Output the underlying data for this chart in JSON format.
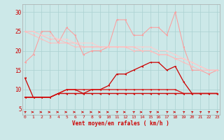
{
  "x": [
    0,
    1,
    2,
    3,
    4,
    5,
    6,
    7,
    8,
    9,
    10,
    11,
    12,
    13,
    14,
    15,
    16,
    17,
    18,
    19,
    20,
    21,
    22,
    23
  ],
  "jagged_pink": [
    17,
    19,
    25,
    25,
    22,
    26,
    24,
    19,
    20,
    20,
    21,
    28,
    28,
    24,
    24,
    26,
    26,
    24,
    30,
    21,
    15,
    15,
    14,
    15
  ],
  "slope1": [
    25,
    25,
    24,
    23,
    23,
    22,
    22,
    21,
    21,
    21,
    21,
    21,
    21,
    20,
    20,
    20,
    19,
    19,
    18,
    18,
    17,
    16,
    15,
    15
  ],
  "slope2": [
    25,
    25,
    24,
    24,
    23,
    23,
    22,
    22,
    22,
    21,
    21,
    21,
    21,
    21,
    21,
    21,
    20,
    20,
    19,
    18,
    17,
    16,
    15,
    15
  ],
  "slope3": [
    25,
    24,
    23,
    22,
    22,
    22,
    21,
    21,
    21,
    21,
    21,
    21,
    21,
    21,
    20,
    20,
    19,
    19,
    18,
    17,
    16,
    15,
    15,
    15
  ],
  "dark_rising": [
    13,
    8,
    8,
    8,
    9,
    10,
    10,
    9,
    10,
    10,
    11,
    14,
    14,
    15,
    16,
    17,
    17,
    15,
    16,
    12,
    9,
    9,
    9,
    9
  ],
  "flat1": [
    8,
    8,
    8,
    8,
    9,
    10,
    10,
    10,
    10,
    10,
    10,
    10,
    10,
    10,
    10,
    10,
    10,
    10,
    10,
    9,
    9,
    9,
    9,
    9
  ],
  "flat2": [
    8,
    8,
    8,
    8,
    9,
    9,
    9,
    9,
    9,
    9,
    9,
    9,
    9,
    9,
    9,
    9,
    9,
    9,
    9,
    9,
    9,
    9,
    9,
    9
  ],
  "flat3": [
    8,
    8,
    8,
    8,
    9,
    9,
    9,
    9,
    9,
    9,
    9,
    9,
    9,
    9,
    9,
    9,
    9,
    9,
    9,
    9,
    9,
    9,
    9,
    9
  ],
  "bg_color": "#cce8e8",
  "grid_color": "#aad0d0",
  "xlabel": "Vent moyen/en rafales ( km/h )",
  "yticks": [
    5,
    10,
    15,
    20,
    25,
    30
  ],
  "xlim": [
    -0.3,
    23.3
  ],
  "ylim": [
    3.5,
    32
  ]
}
